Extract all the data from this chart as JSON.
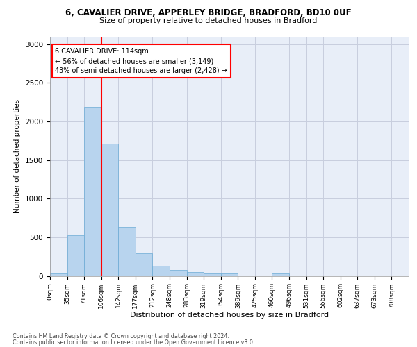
{
  "title_line1": "6, CAVALIER DRIVE, APPERLEY BRIDGE, BRADFORD, BD10 0UF",
  "title_line2": "Size of property relative to detached houses in Bradford",
  "xlabel": "Distribution of detached houses by size in Bradford",
  "ylabel": "Number of detached properties",
  "bin_labels": [
    "0sqm",
    "35sqm",
    "71sqm",
    "106sqm",
    "142sqm",
    "177sqm",
    "212sqm",
    "248sqm",
    "283sqm",
    "319sqm",
    "354sqm",
    "389sqm",
    "425sqm",
    "460sqm",
    "496sqm",
    "531sqm",
    "566sqm",
    "602sqm",
    "637sqm",
    "673sqm",
    "708sqm"
  ],
  "bar_values": [
    30,
    525,
    2190,
    1710,
    635,
    295,
    130,
    75,
    45,
    35,
    35,
    0,
    0,
    30,
    0,
    0,
    0,
    0,
    0,
    0,
    0
  ],
  "bar_color": "#b8d4ee",
  "bar_edge_color": "#6aaad4",
  "vline_x": 3,
  "vline_color": "red",
  "annotation_text": "6 CAVALIER DRIVE: 114sqm\n← 56% of detached houses are smaller (3,149)\n43% of semi-detached houses are larger (2,428) →",
  "annotation_box_color": "white",
  "annotation_box_edge": "red",
  "ylim": [
    0,
    3100
  ],
  "yticks": [
    0,
    500,
    1000,
    1500,
    2000,
    2500,
    3000
  ],
  "footnote1": "Contains HM Land Registry data © Crown copyright and database right 2024.",
  "footnote2": "Contains public sector information licensed under the Open Government Licence v3.0.",
  "bg_color": "#e8eef8",
  "grid_color": "#c8cede"
}
